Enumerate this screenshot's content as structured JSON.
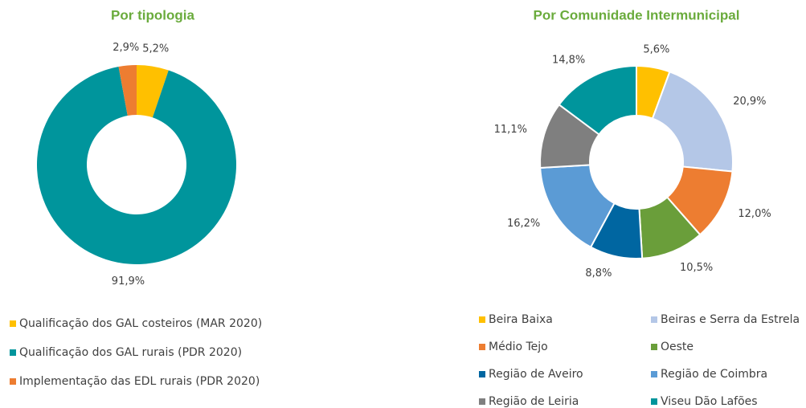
{
  "chart_data": [
    {
      "type": "donut",
      "title": "Por tipologia",
      "categories": [
        "Qualificação dos GAL costeiros (MAR 2020)",
        "Qualificação dos GAL rurais (PDR 2020)",
        "Implementação das EDL rurais (PDR 2020)"
      ],
      "values": [
        5.2,
        91.9,
        2.9
      ],
      "value_labels": [
        "5,2%",
        "91,9%",
        "2,9%"
      ],
      "colors": [
        "#ffc000",
        "#00959c",
        "#ed7d31"
      ],
      "legend": "bottom"
    },
    {
      "type": "donut",
      "title": "Por Comunidade Intermunicipal",
      "categories": [
        "Beira Baixa",
        "Beiras e Serra da Estrela",
        "Médio Tejo",
        "Oeste",
        "Região de Aveiro",
        "Região de Coimbra",
        "Região de Leiria",
        "Viseu Dão Lafões"
      ],
      "values": [
        5.6,
        20.9,
        12.0,
        10.5,
        8.8,
        16.2,
        11.1,
        14.8
      ],
      "value_labels": [
        "5,6%",
        "20,9%",
        "12,0%",
        "10,5%",
        "8,8%",
        "16,2%",
        "11,1%",
        "14,8%"
      ],
      "colors": [
        "#ffc000",
        "#b4c7e7",
        "#ed7d31",
        "#6a9e3a",
        "#0066a1",
        "#5b9bd5",
        "#7f7f7f",
        "#00959c"
      ],
      "legend": "bottom"
    }
  ]
}
